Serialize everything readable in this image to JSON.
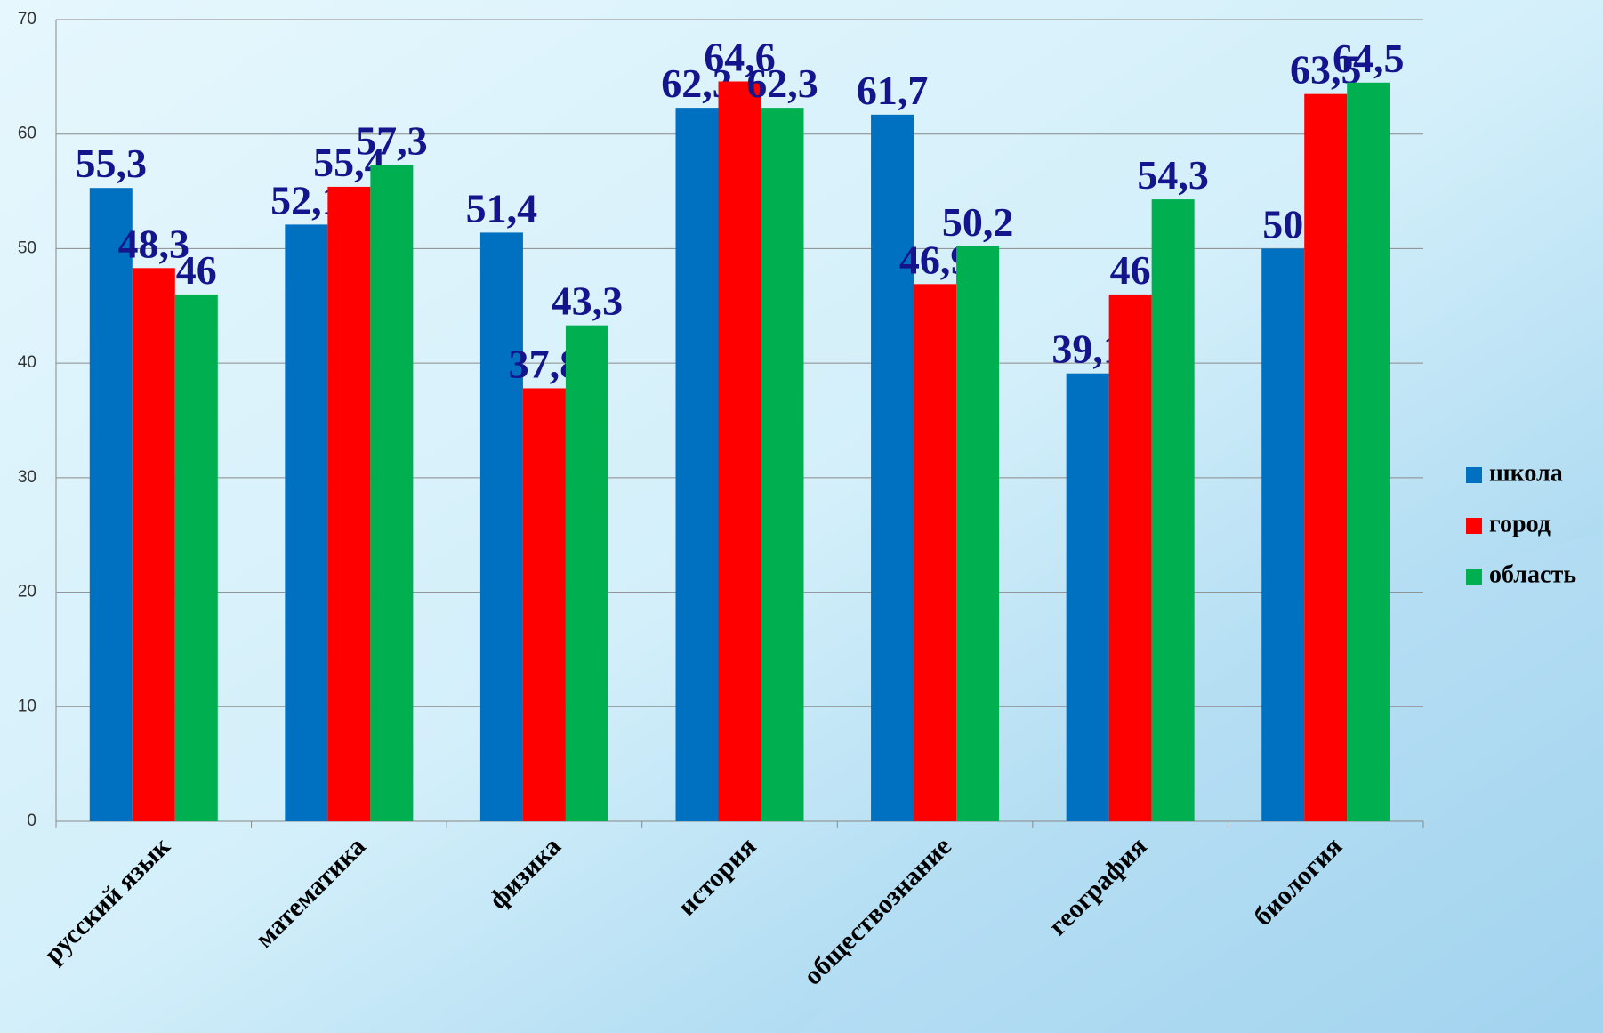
{
  "chart_data": {
    "type": "bar",
    "categories": [
      "русский язык",
      "математика",
      "физика",
      "история",
      "обществознание",
      "география",
      "биология"
    ],
    "series": [
      {
        "name": "школа",
        "color": "#0070c0",
        "values": [
          55.3,
          52.1,
          51.4,
          62.3,
          61.7,
          39.1,
          50
        ],
        "value_labels": [
          "55,3",
          "52,1",
          "51,4",
          "62,3",
          "61,7",
          "39,1",
          "50"
        ]
      },
      {
        "name": "город",
        "color": "#ff0000",
        "values": [
          48.3,
          55.4,
          37.8,
          64.6,
          46.9,
          46,
          63.5
        ],
        "value_labels": [
          "48,3",
          "55,4",
          "37,8",
          "64,6",
          "46,9",
          "46",
          "63,5"
        ]
      },
      {
        "name": "область",
        "color": "#00b050",
        "values": [
          46,
          57.3,
          43.3,
          62.3,
          50.2,
          54.3,
          64.5
        ],
        "value_labels": [
          "46",
          "57,3",
          "43,3",
          "62,3",
          "50,2",
          "54,3",
          "64,5"
        ]
      }
    ],
    "ylim": [
      0,
      70
    ],
    "yticks": [
      0,
      10,
      20,
      30,
      40,
      50,
      60,
      70
    ],
    "grid": true,
    "legend": "right"
  }
}
